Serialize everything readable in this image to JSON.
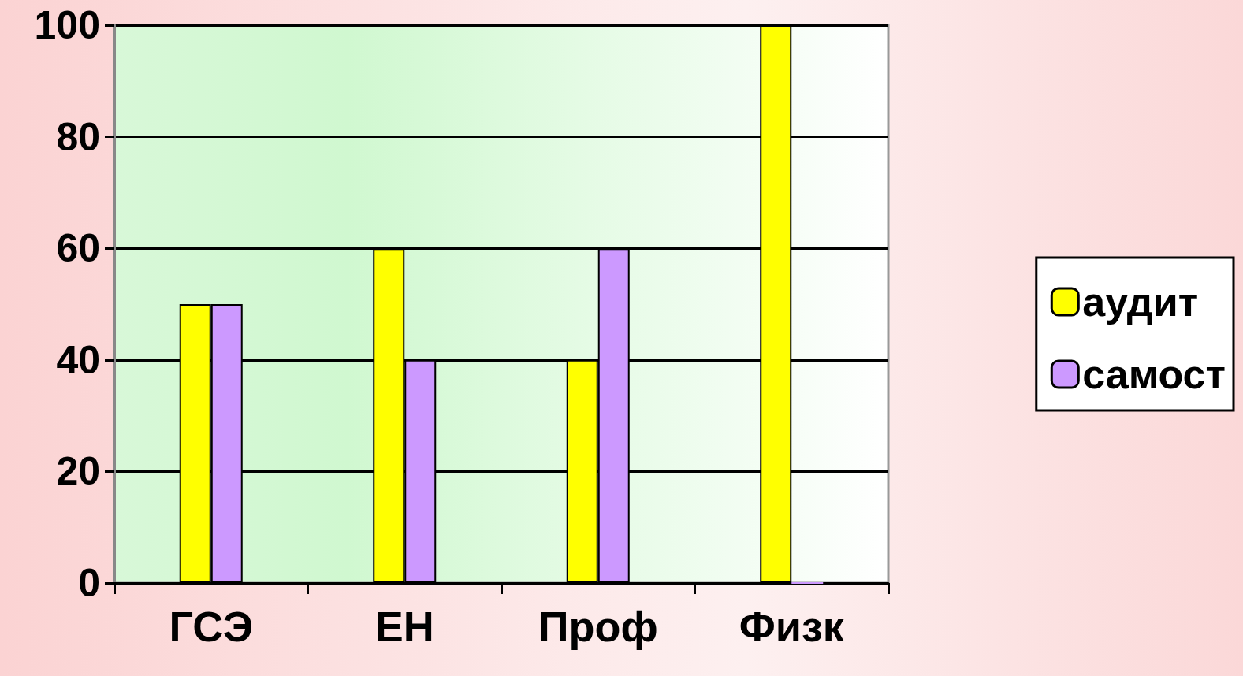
{
  "chart_data": {
    "type": "bar",
    "categories": [
      "ГСЭ",
      "ЕН",
      "Проф",
      "Физк"
    ],
    "series": [
      {
        "name": "аудит",
        "color": "#ffff00",
        "values": [
          50,
          60,
          40,
          100
        ]
      },
      {
        "name": "самост",
        "color": "#cc99ff",
        "values": [
          50,
          40,
          60,
          0
        ]
      }
    ],
    "ylim": [
      0,
      100
    ],
    "yticks": [
      0,
      20,
      40,
      60,
      80,
      100
    ],
    "grid": "y",
    "legend": "right"
  }
}
